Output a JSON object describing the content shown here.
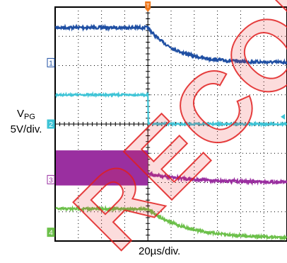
{
  "chart_data": {
    "type": "line",
    "ylabel_main": "V",
    "ylabel_sub": "PG",
    "ylabel_scale": "5V/div.",
    "xlabel": "20µs/div.",
    "x_divisions": 10,
    "y_divisions": 8,
    "trigger_marker": "T",
    "trigger_div": 4,
    "watermark": "RECOM",
    "series": [
      {
        "channel": "1",
        "color": "#1f4fa3",
        "before_level_div": 7.3,
        "after_start_div": 7.3,
        "after_end_div": 6.1,
        "tau_div": 1.2,
        "noise_div": 0.05
      },
      {
        "channel": "2",
        "color": "#3ec4d6",
        "before_level_div": 5.0,
        "after_start_div": 4.0,
        "after_end_div": 4.0,
        "tau_div": 0.1,
        "noise_div": 0.03
      },
      {
        "channel": "3",
        "color": "#9a2fa0",
        "before_level_div": 2.5,
        "band_half_div": 0.6,
        "after_start_div": 2.3,
        "after_end_div": 2.0,
        "tau_div": 2.0,
        "noise_div": 0.05
      },
      {
        "channel": "4",
        "color": "#6cc04a",
        "before_level_div": 1.1,
        "after_start_div": 1.1,
        "after_end_div": 0.1,
        "tau_div": 1.6,
        "noise_div": 0.04
      }
    ]
  }
}
